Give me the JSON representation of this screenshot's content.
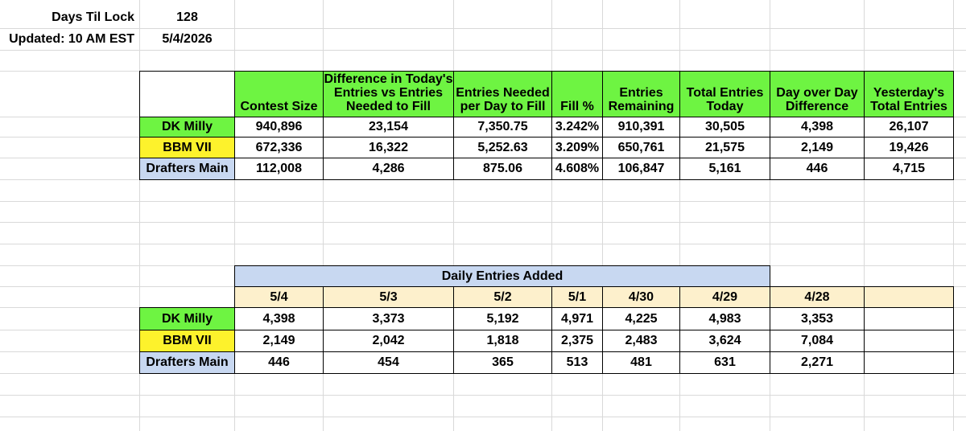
{
  "top": {
    "days_label": "Days Til Lock",
    "days_value": "128",
    "updated_label": "Updated: 10 AM EST",
    "updated_value": "5/4/2026"
  },
  "summary": {
    "headers": [
      "Contest Size",
      "Difference in Today's Entries vs Entries Needed to Fill",
      "Entries Needed per Day to Fill",
      "Fill %",
      "Entries Remaining",
      "Total Entries Today",
      "Day over Day Difference",
      "Yesterday's Total Entries"
    ],
    "rows": [
      {
        "name": "DK Milly",
        "cells": [
          "940,896",
          "23,154",
          "7,350.75",
          "3.242%",
          "910,391",
          "30,505",
          "4,398",
          "26,107"
        ]
      },
      {
        "name": "BBM VII",
        "cells": [
          "672,336",
          "16,322",
          "5,252.63",
          "3.209%",
          "650,761",
          "21,575",
          "2,149",
          "19,426"
        ]
      },
      {
        "name": "Drafters Main",
        "cells": [
          "112,008",
          "4,286",
          "875.06",
          "4.608%",
          "106,847",
          "5,161",
          "446",
          "4,715"
        ]
      }
    ]
  },
  "daily": {
    "title": "Daily Entries Added",
    "dates": [
      "5/4",
      "5/3",
      "5/2",
      "5/1",
      "4/30",
      "4/29",
      "4/28"
    ],
    "rows": [
      {
        "name": "DK Milly",
        "cells": [
          "4,398",
          "3,373",
          "5,192",
          "4,971",
          "4,225",
          "4,983",
          "3,353"
        ]
      },
      {
        "name": "BBM VII",
        "cells": [
          "2,149",
          "2,042",
          "1,818",
          "2,375",
          "2,483",
          "3,624",
          "7,084"
        ]
      },
      {
        "name": "Drafters Main",
        "cells": [
          "446",
          "454",
          "365",
          "513",
          "481",
          "631",
          "2,271"
        ]
      }
    ]
  },
  "colors": {
    "dk_milly": "#6ef442",
    "bbm_vii": "#fdf22c",
    "drafters_main": "#c8d8f1",
    "date_row": "#fdf0cc",
    "gridline": "#d9d9d9"
  }
}
